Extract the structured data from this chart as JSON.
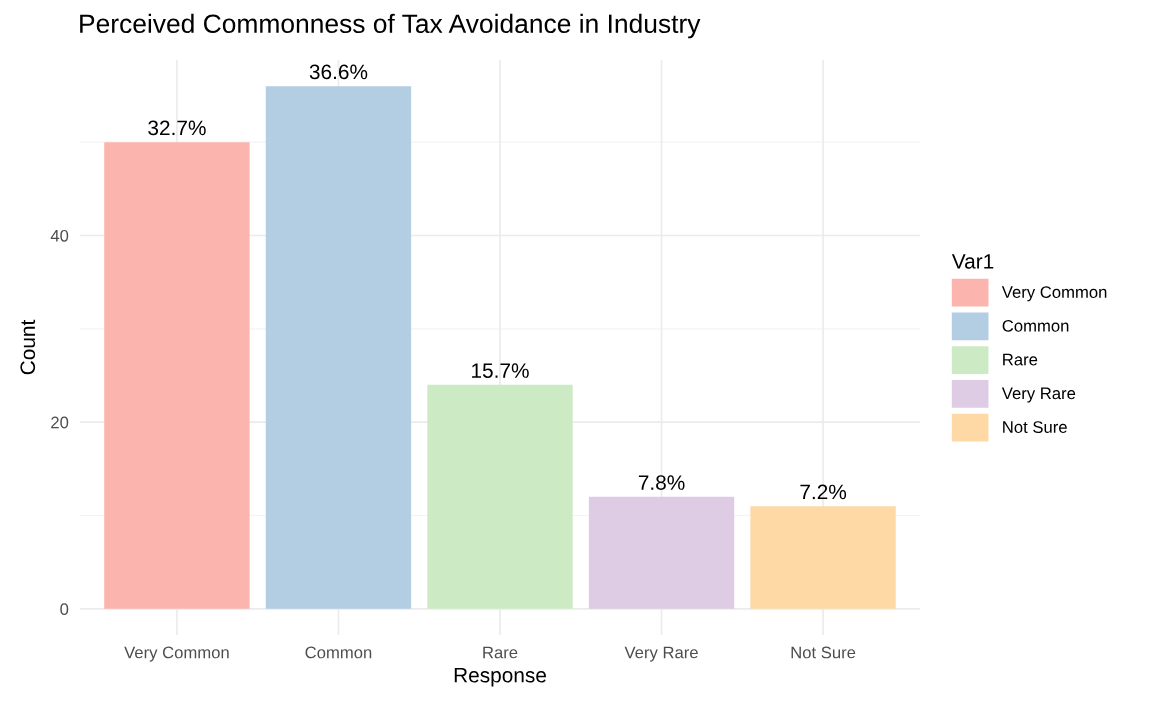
{
  "chart_data": {
    "type": "bar",
    "title": "Perceived Commonness of Tax Avoidance in Industry",
    "xlabel": "Response",
    "ylabel": "Count",
    "legend_title": "Var1",
    "categories": [
      "Very Common",
      "Common",
      "Rare",
      "Very Rare",
      "Not Sure"
    ],
    "series": [
      {
        "name": "Very Common",
        "color": "#fbb4ae",
        "values": [
          50,
          null,
          null,
          null,
          null
        ]
      },
      {
        "name": "Common",
        "color": "#b3cde3",
        "values": [
          null,
          56,
          null,
          null,
          null
        ]
      },
      {
        "name": "Rare",
        "color": "#ccebc5",
        "values": [
          null,
          null,
          24,
          null,
          null
        ]
      },
      {
        "name": "Very Rare",
        "color": "#decbe4",
        "values": [
          null,
          null,
          null,
          12,
          null
        ]
      },
      {
        "name": "Not Sure",
        "color": "#fed9a6",
        "values": [
          null,
          null,
          null,
          null,
          11
        ]
      }
    ],
    "annotations": [
      {
        "text": "32.7%",
        "x": "Very Common",
        "y": 50
      },
      {
        "text": "36.6%",
        "x": "Common",
        "y": 56
      },
      {
        "text": "15.7%",
        "x": "Rare",
        "y": 24
      },
      {
        "text": "7.8%",
        "x": "Very Rare",
        "y": 12
      },
      {
        "text": "7.2%",
        "x": "Not Sure",
        "y": 11
      }
    ],
    "ylim": [
      -2.8,
      58.8
    ],
    "yticks": [
      0,
      20,
      40
    ],
    "grid": true,
    "legend": "right"
  }
}
